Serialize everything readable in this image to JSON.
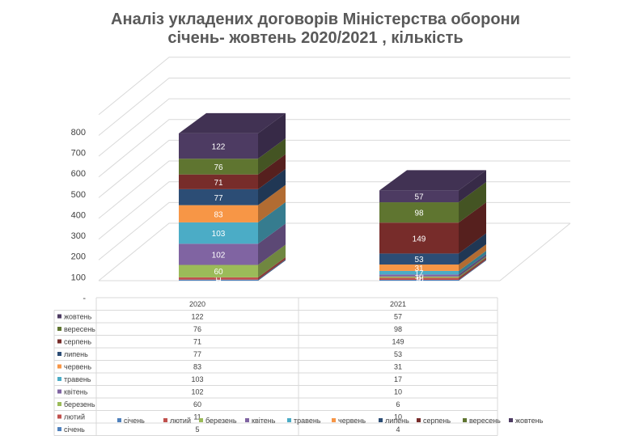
{
  "chart_data": {
    "type": "bar",
    "stacked": true,
    "title_line1": "Аналіз укладених договорів Міністерства оборони",
    "title_line2": "січень- жовтень 2020/2021  , кількість",
    "categories": [
      "2020",
      "2021"
    ],
    "ylim": [
      0,
      800
    ],
    "yticks": [
      "-",
      "100",
      "200",
      "300",
      "400",
      "500",
      "600",
      "700",
      "800"
    ],
    "grid": true,
    "legend_position": "bottom",
    "series": [
      {
        "name": "січень",
        "color": "#4f81bd",
        "values": [
          5,
          4
        ]
      },
      {
        "name": "лютий",
        "color": "#c0504d",
        "values": [
          11,
          10
        ]
      },
      {
        "name": "березень",
        "color": "#9bbb59",
        "values": [
          60,
          6
        ]
      },
      {
        "name": "квітень",
        "color": "#8064a2",
        "values": [
          102,
          10
        ]
      },
      {
        "name": "травень",
        "color": "#4bacc6",
        "values": [
          103,
          17
        ]
      },
      {
        "name": "червень",
        "color": "#f79646",
        "values": [
          83,
          31
        ]
      },
      {
        "name": "липень",
        "color": "#2c4d75",
        "values": [
          77,
          53
        ]
      },
      {
        "name": "серпень",
        "color": "#772c2a",
        "values": [
          71,
          149
        ]
      },
      {
        "name": "вересень",
        "color": "#5f7530",
        "values": [
          76,
          98
        ]
      },
      {
        "name": "жовтень",
        "color": "#4d3b62",
        "values": [
          122,
          57
        ]
      }
    ]
  }
}
